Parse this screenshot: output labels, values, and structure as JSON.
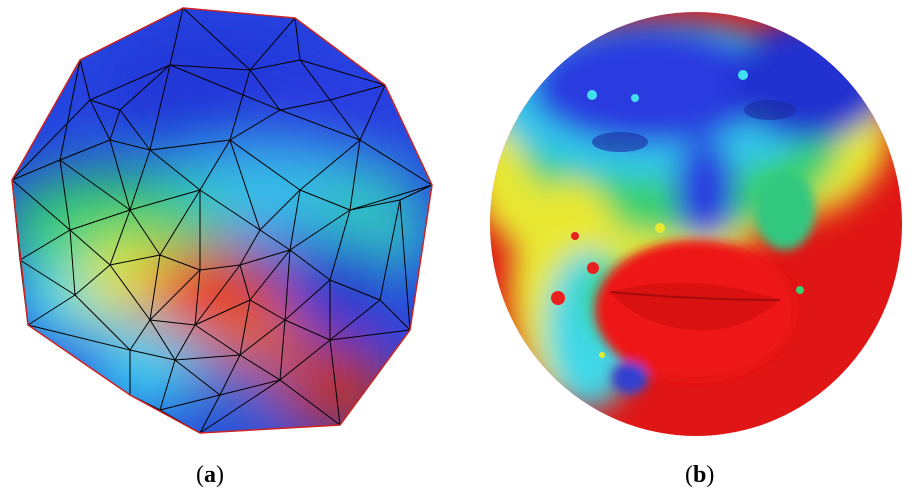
{
  "captions": {
    "a": {
      "open": "(",
      "letter": "a",
      "close": ")"
    },
    "b": {
      "open": "(",
      "letter": "b",
      "close": ")"
    }
  },
  "colors": {
    "mesh_edge": "#000000",
    "boundary": "#cc2222",
    "red": "#ee1111",
    "yellow": "#f2ee20",
    "green": "#22cc55",
    "cyan": "#30d8f0",
    "blue": "#2030d8"
  }
}
